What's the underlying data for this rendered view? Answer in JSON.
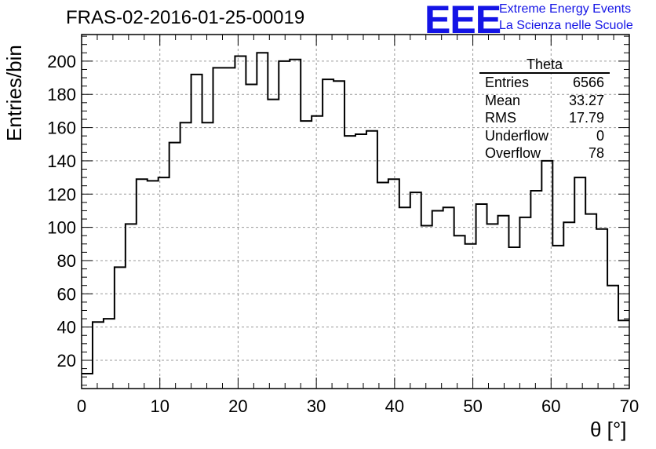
{
  "header": {
    "title": "FRAS-02-2016-01-25-00019",
    "logo_text": "EEE",
    "logo_line1": "Extreme Energy Events",
    "logo_line2": "La Scienza nelle Scuole"
  },
  "stats_box": {
    "title": "Theta",
    "rows": [
      {
        "label": "Entries",
        "value": "6566"
      },
      {
        "label": "Mean",
        "value": "33.27"
      },
      {
        "label": "RMS",
        "value": "17.79"
      },
      {
        "label": "Underflow",
        "value": "0"
      },
      {
        "label": "Overflow",
        "value": "78"
      }
    ]
  },
  "colors": {
    "logo": "#1414e6",
    "line": "#000000",
    "grid": "#9a9a9a"
  },
  "chart_data": {
    "type": "histogram",
    "title": "FRAS-02-2016-01-25-00019",
    "xlabel": "θ [°]",
    "ylabel": "Entries/bin",
    "xlim": [
      0,
      70
    ],
    "ylim": [
      3,
      216
    ],
    "bin_width": 1.4,
    "x_ticks": [
      0,
      10,
      20,
      30,
      40,
      50,
      60,
      70
    ],
    "y_ticks": [
      20,
      40,
      60,
      80,
      100,
      120,
      140,
      160,
      180,
      200
    ],
    "grid": true,
    "values": [
      12,
      43,
      45,
      76,
      102,
      129,
      128,
      130,
      151,
      163,
      192,
      163,
      196,
      196,
      203,
      186,
      205,
      177,
      200,
      201,
      164,
      167,
      189,
      188,
      155,
      156,
      158,
      127,
      129,
      112,
      121,
      101,
      110,
      112,
      95,
      90,
      114,
      102,
      107,
      88,
      106,
      122,
      140,
      89,
      103,
      130,
      108,
      99,
      65,
      44
    ]
  }
}
